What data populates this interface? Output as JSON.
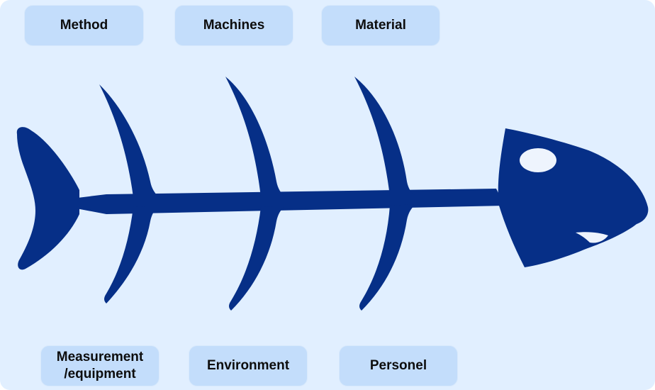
{
  "diagram": {
    "type": "fishbone",
    "colors": {
      "background": "#e1efff",
      "label_box": "#c3ddfb",
      "fish": "#062f87",
      "eye": "#eef4fd"
    },
    "top_labels": {
      "method": "Method",
      "machines": "Machines",
      "material": "Material"
    },
    "bottom_labels": {
      "measurement": "Measurement /equipment",
      "environment": "Environment",
      "personel": "Personel"
    }
  }
}
